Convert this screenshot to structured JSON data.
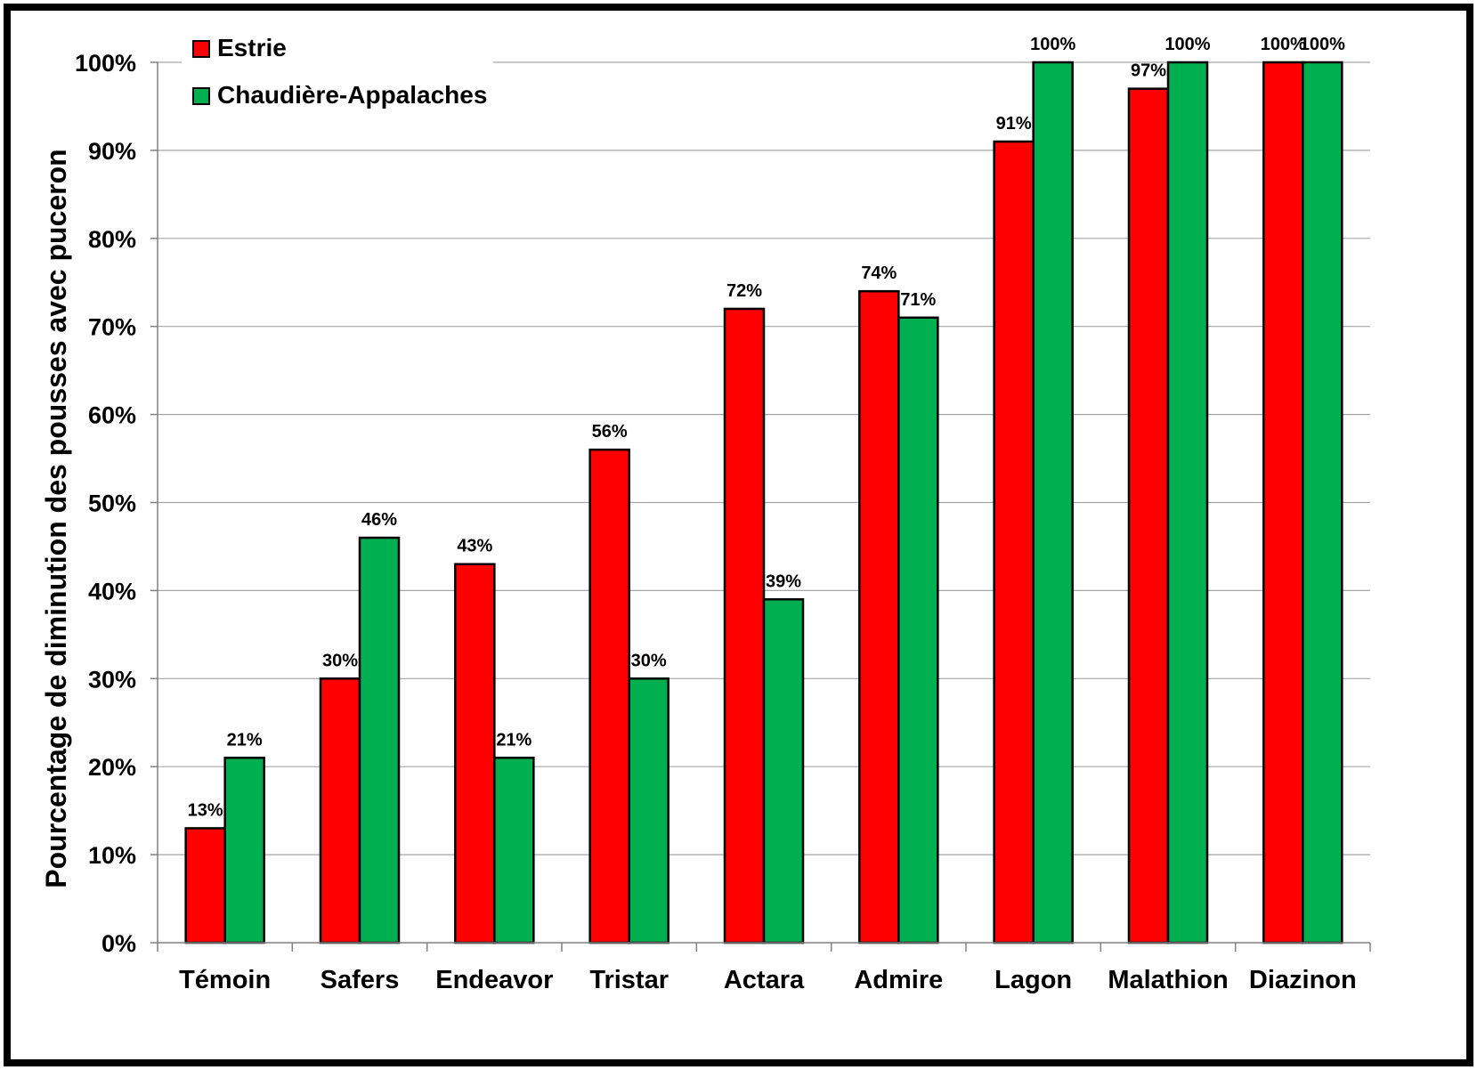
{
  "chart_data": {
    "type": "bar",
    "title": "",
    "xlabel": "",
    "ylabel": "Pourcentage de diminution des pousses avec puceron",
    "ylim": [
      0,
      100
    ],
    "y_ticks": [
      "0%",
      "10%",
      "20%",
      "30%",
      "40%",
      "50%",
      "60%",
      "70%",
      "80%",
      "90%",
      "100%"
    ],
    "grid": true,
    "legend_position": "top-left",
    "categories": [
      "Témoin",
      "Safers",
      "Endeavor",
      "Tristar",
      "Actara",
      "Admire",
      "Lagon",
      "Malathion",
      "Diazinon"
    ],
    "series": [
      {
        "name": "Estrie",
        "color": "#ff0000",
        "values": [
          13,
          30,
          43,
          56,
          72,
          74,
          91,
          97,
          100
        ],
        "labels": [
          "13%",
          "30%",
          "43%",
          "56%",
          "72%",
          "74%",
          "91%",
          "97%",
          "100%"
        ]
      },
      {
        "name": "Chaudière-Appalaches",
        "color": "#00b050",
        "values": [
          21,
          46,
          21,
          30,
          39,
          71,
          100,
          100,
          100
        ],
        "labels": [
          "21%",
          "46%",
          "21%",
          "30%",
          "39%",
          "71%",
          "100%",
          "100%",
          "100%"
        ]
      }
    ]
  }
}
